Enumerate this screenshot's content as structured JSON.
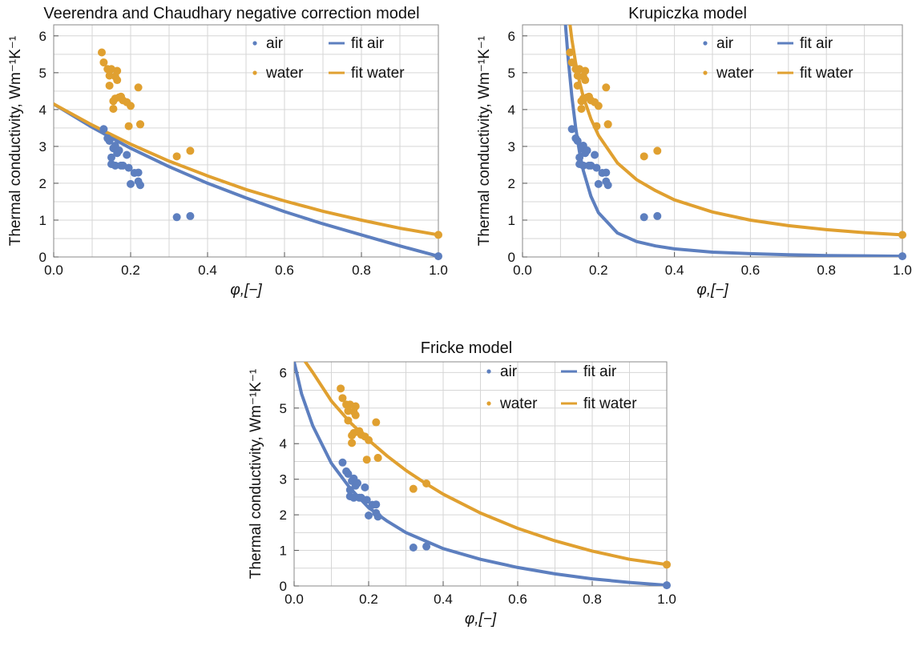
{
  "figure": {
    "colors": {
      "air": "#5d7fbf",
      "water": "#e0a030"
    },
    "legend": {
      "air": "air",
      "water": "water",
      "fit_air": "fit air",
      "fit_water": "fit water"
    }
  },
  "chart_data": [
    {
      "type": "scatter",
      "title": "Veerendra and Chaudhary negative correction model",
      "xlabel": "φ,[−]",
      "ylabel": "Thermal conductivity, Wm⁻¹K⁻¹",
      "xlim": [
        0.0,
        1.0
      ],
      "ylim": [
        0,
        6.3
      ],
      "x_ticks": [
        "0.0",
        "0.2",
        "0.4",
        "0.6",
        "0.8",
        "1.0"
      ],
      "y_ticks": [
        "0",
        "1",
        "2",
        "3",
        "4",
        "5",
        "6"
      ],
      "grid": true,
      "legend_position": "top-right",
      "series": [
        {
          "name": "air",
          "kind": "points",
          "color": "#5d7fbf",
          "x": [
            0.13,
            0.14,
            0.145,
            0.15,
            0.15,
            0.155,
            0.16,
            0.16,
            0.165,
            0.17,
            0.175,
            0.18,
            0.19,
            0.195,
            0.2,
            0.21,
            0.22,
            0.22,
            0.225,
            0.32,
            0.355,
            1.0
          ],
          "y": [
            3.47,
            3.22,
            3.15,
            2.7,
            2.52,
            2.95,
            3.02,
            2.48,
            2.82,
            2.89,
            2.48,
            2.48,
            2.77,
            2.42,
            1.98,
            2.28,
            2.29,
            2.05,
            1.95,
            1.08,
            1.11,
            0.02
          ]
        },
        {
          "name": "water",
          "kind": "points",
          "color": "#e0a030",
          "x": [
            0.125,
            0.13,
            0.14,
            0.145,
            0.145,
            0.15,
            0.155,
            0.155,
            0.16,
            0.16,
            0.165,
            0.165,
            0.17,
            0.175,
            0.18,
            0.19,
            0.195,
            0.2,
            0.22,
            0.225,
            0.225,
            0.32,
            0.355,
            1.0
          ],
          "y": [
            5.55,
            5.28,
            5.1,
            4.92,
            4.65,
            5.1,
            4.23,
            4.02,
            4.9,
            4.3,
            5.05,
            4.8,
            4.33,
            4.35,
            4.25,
            4.2,
            3.55,
            4.1,
            4.6,
            3.6,
            3.6,
            2.73,
            2.88,
            0.6
          ]
        },
        {
          "name": "fit air",
          "kind": "line",
          "color": "#5d7fbf",
          "x": [
            0.0,
            0.1,
            0.2,
            0.3,
            0.4,
            0.5,
            0.6,
            0.7,
            0.8,
            0.9,
            1.0
          ],
          "y": [
            4.15,
            3.52,
            2.95,
            2.45,
            2.0,
            1.6,
            1.23,
            0.9,
            0.6,
            0.3,
            0.02
          ]
        },
        {
          "name": "fit water",
          "kind": "line",
          "color": "#e0a030",
          "x": [
            0.0,
            0.1,
            0.2,
            0.3,
            0.4,
            0.5,
            0.6,
            0.7,
            0.8,
            0.9,
            1.0
          ],
          "y": [
            4.15,
            3.58,
            3.06,
            2.6,
            2.2,
            1.83,
            1.52,
            1.24,
            1.0,
            0.78,
            0.6
          ]
        }
      ]
    },
    {
      "type": "scatter",
      "title": "Krupiczka model",
      "xlabel": "φ,[−]",
      "ylabel": "Thermal conductivity, Wm⁻¹K⁻¹",
      "xlim": [
        0.0,
        1.0
      ],
      "ylim": [
        0,
        6.3
      ],
      "x_ticks": [
        "0.0",
        "0.2",
        "0.4",
        "0.6",
        "0.8",
        "1.0"
      ],
      "y_ticks": [
        "0",
        "1",
        "2",
        "3",
        "4",
        "5",
        "6"
      ],
      "grid": true,
      "legend_position": "top-right",
      "series": [
        {
          "name": "air",
          "kind": "points",
          "color": "#5d7fbf",
          "x": [
            0.13,
            0.14,
            0.145,
            0.15,
            0.15,
            0.155,
            0.16,
            0.16,
            0.165,
            0.17,
            0.175,
            0.18,
            0.19,
            0.195,
            0.2,
            0.21,
            0.22,
            0.22,
            0.225,
            0.32,
            0.355,
            1.0
          ],
          "y": [
            3.47,
            3.22,
            3.15,
            2.7,
            2.52,
            2.95,
            3.02,
            2.48,
            2.82,
            2.89,
            2.48,
            2.48,
            2.77,
            2.42,
            1.98,
            2.28,
            2.29,
            2.05,
            1.95,
            1.08,
            1.11,
            0.02
          ]
        },
        {
          "name": "water",
          "kind": "points",
          "color": "#e0a030",
          "x": [
            0.125,
            0.13,
            0.14,
            0.145,
            0.145,
            0.15,
            0.155,
            0.155,
            0.16,
            0.16,
            0.165,
            0.165,
            0.17,
            0.175,
            0.18,
            0.19,
            0.195,
            0.2,
            0.22,
            0.225,
            0.225,
            0.32,
            0.355,
            1.0
          ],
          "y": [
            5.55,
            5.28,
            5.1,
            4.92,
            4.65,
            5.1,
            4.23,
            4.02,
            4.9,
            4.3,
            5.05,
            4.8,
            4.33,
            4.35,
            4.25,
            4.2,
            3.55,
            4.1,
            4.6,
            3.6,
            3.6,
            2.73,
            2.88,
            0.6
          ]
        },
        {
          "name": "fit air",
          "kind": "line",
          "color": "#5d7fbf",
          "x": [
            0.113,
            0.12,
            0.13,
            0.14,
            0.15,
            0.16,
            0.18,
            0.2,
            0.25,
            0.3,
            0.35,
            0.4,
            0.5,
            0.6,
            0.7,
            0.8,
            0.9,
            1.0
          ],
          "y": [
            6.3,
            5.4,
            4.35,
            3.5,
            2.85,
            2.35,
            1.65,
            1.2,
            0.65,
            0.42,
            0.3,
            0.22,
            0.13,
            0.09,
            0.06,
            0.04,
            0.03,
            0.02
          ]
        },
        {
          "name": "fit water",
          "kind": "line",
          "color": "#e0a030",
          "x": [
            0.125,
            0.13,
            0.14,
            0.15,
            0.16,
            0.18,
            0.2,
            0.25,
            0.3,
            0.35,
            0.4,
            0.5,
            0.6,
            0.7,
            0.8,
            0.9,
            1.0
          ],
          "y": [
            6.3,
            5.9,
            5.25,
            4.75,
            4.35,
            3.75,
            3.3,
            2.55,
            2.1,
            1.8,
            1.55,
            1.22,
            1.0,
            0.85,
            0.74,
            0.66,
            0.6
          ]
        }
      ]
    },
    {
      "type": "scatter",
      "title": "Fricke model",
      "xlabel": "φ,[−]",
      "ylabel": "Thermal conductivity, Wm⁻¹K⁻¹",
      "xlim": [
        0.0,
        1.0
      ],
      "ylim": [
        0,
        6.3
      ],
      "x_ticks": [
        "0.0",
        "0.2",
        "0.4",
        "0.6",
        "0.8",
        "1.0"
      ],
      "y_ticks": [
        "0",
        "1",
        "2",
        "3",
        "4",
        "5",
        "6"
      ],
      "grid": true,
      "legend_position": "top-right",
      "series": [
        {
          "name": "air",
          "kind": "points",
          "color": "#5d7fbf",
          "x": [
            0.13,
            0.14,
            0.145,
            0.15,
            0.15,
            0.155,
            0.16,
            0.16,
            0.165,
            0.17,
            0.175,
            0.18,
            0.19,
            0.195,
            0.2,
            0.21,
            0.22,
            0.22,
            0.225,
            0.32,
            0.355,
            1.0
          ],
          "y": [
            3.47,
            3.22,
            3.15,
            2.7,
            2.52,
            2.95,
            3.02,
            2.48,
            2.82,
            2.89,
            2.48,
            2.48,
            2.77,
            2.42,
            1.98,
            2.28,
            2.29,
            2.05,
            1.95,
            1.08,
            1.11,
            0.02
          ]
        },
        {
          "name": "water",
          "kind": "points",
          "color": "#e0a030",
          "x": [
            0.125,
            0.13,
            0.14,
            0.145,
            0.145,
            0.15,
            0.155,
            0.155,
            0.16,
            0.16,
            0.165,
            0.165,
            0.17,
            0.175,
            0.18,
            0.19,
            0.195,
            0.2,
            0.22,
            0.225,
            0.225,
            0.32,
            0.355,
            1.0
          ],
          "y": [
            5.55,
            5.28,
            5.1,
            4.92,
            4.65,
            5.1,
            4.23,
            4.02,
            4.9,
            4.3,
            5.05,
            4.8,
            4.33,
            4.35,
            4.25,
            4.2,
            3.55,
            4.1,
            4.6,
            3.6,
            3.6,
            2.73,
            2.88,
            0.6
          ]
        },
        {
          "name": "fit air",
          "kind": "line",
          "color": "#5d7fbf",
          "x": [
            0.0,
            0.02,
            0.05,
            0.1,
            0.15,
            0.2,
            0.25,
            0.3,
            0.4,
            0.5,
            0.6,
            0.7,
            0.8,
            0.9,
            1.0
          ],
          "y": [
            6.3,
            5.4,
            4.5,
            3.45,
            2.75,
            2.2,
            1.82,
            1.5,
            1.05,
            0.75,
            0.52,
            0.34,
            0.2,
            0.1,
            0.02
          ]
        },
        {
          "name": "fit water",
          "kind": "line",
          "color": "#e0a030",
          "x": [
            0.03,
            0.05,
            0.1,
            0.15,
            0.2,
            0.25,
            0.3,
            0.35,
            0.4,
            0.5,
            0.6,
            0.7,
            0.8,
            0.9,
            1.0
          ],
          "y": [
            6.3,
            6.0,
            5.2,
            4.6,
            4.1,
            3.65,
            3.25,
            2.9,
            2.58,
            2.05,
            1.62,
            1.27,
            0.98,
            0.75,
            0.6
          ]
        }
      ]
    }
  ]
}
